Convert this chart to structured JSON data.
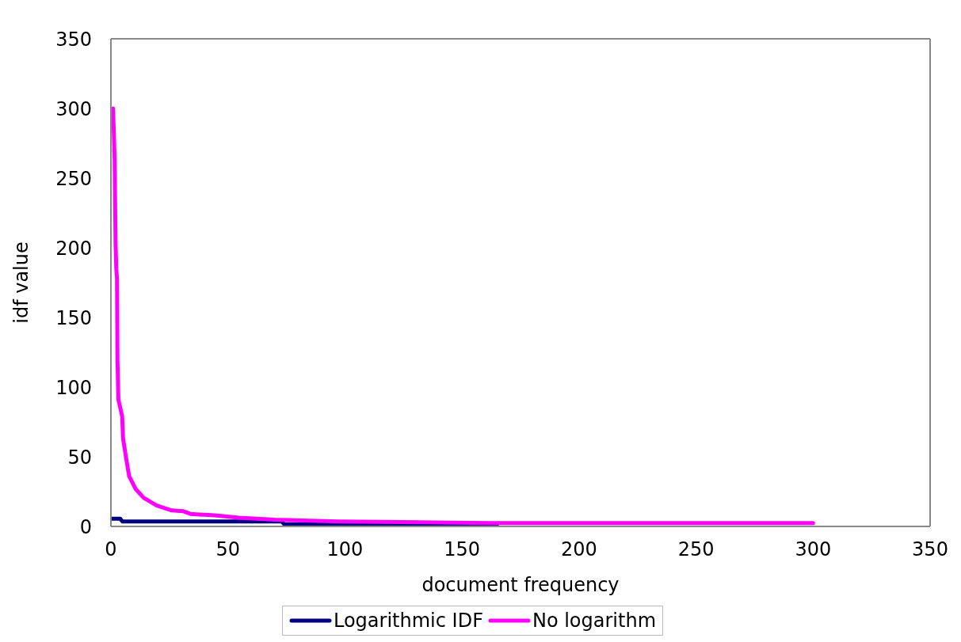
{
  "chart_data": {
    "type": "line",
    "xlabel": "document frequency",
    "ylabel": "idf value",
    "xlim": [
      0,
      350
    ],
    "xticks": [
      0,
      50,
      100,
      150,
      200,
      250,
      300,
      350
    ],
    "ylim": [
      0,
      350
    ],
    "yticks": [
      0,
      50,
      100,
      150,
      200,
      250,
      300,
      350
    ],
    "grid": false,
    "legend": "bottom",
    "marker": "none",
    "line_style": "solid",
    "series": [
      {
        "name": "Logarithmic IDF",
        "color": "#000080",
        "x": [
          0.5,
          4,
          5,
          73,
          74,
          165
        ],
        "values": [
          5.5,
          5.5,
          3.5,
          3.5,
          1.6,
          1.6
        ]
      },
      {
        "name": "No logarithm",
        "color": "#ff00ff",
        "x": [
          0.9,
          1.3,
          1.6,
          2,
          2.3,
          2.6,
          2.8,
          3.2,
          4.8,
          5.2,
          6.6,
          7.8,
          10.5,
          14,
          19.6,
          26,
          31,
          34,
          44.5,
          54.7,
          70,
          97,
          161.6,
          300
        ],
        "values": [
          300,
          280,
          262,
          202,
          185,
          178,
          119,
          91,
          79,
          63,
          48,
          36,
          27,
          20.5,
          15,
          11.5,
          10.9,
          9,
          7.9,
          6.3,
          4.8,
          3.6,
          2.4,
          2.4
        ]
      }
    ]
  }
}
